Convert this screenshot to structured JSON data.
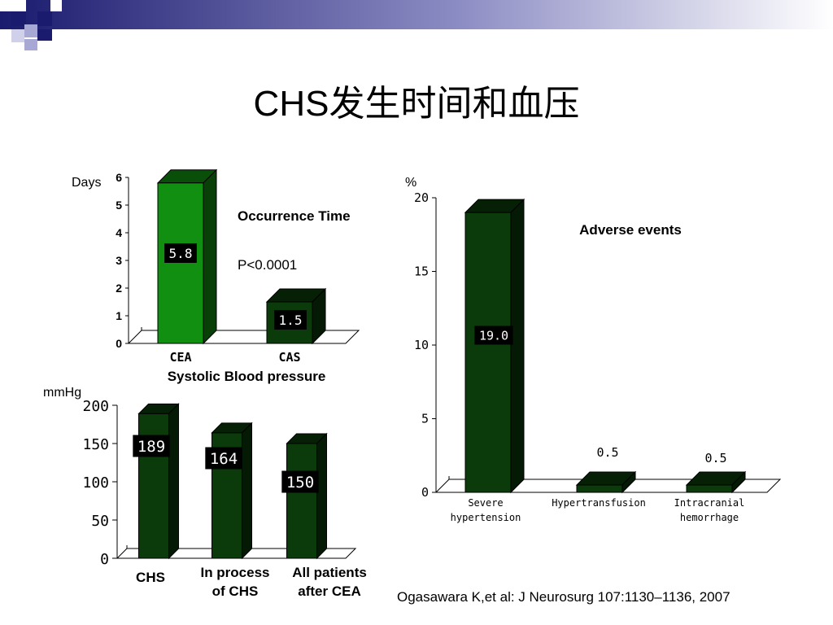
{
  "slide": {
    "title": "CHS发生时间和血压",
    "citation": "Ogasawara K,et al:  J Neurosurg 107:1130–1136, 2007"
  },
  "colors": {
    "bar_bright": "#118f11",
    "bar_dark": "#0b3a0b",
    "header_navy": "#1a1a6e",
    "header_lavender": "#9090c8"
  },
  "chart_data": [
    {
      "id": "occurrence",
      "type": "bar",
      "title": "Occurrence Time",
      "annotation": "P<0.0001",
      "ylabel": "Days",
      "ylim": [
        0,
        6
      ],
      "yticks": [
        0,
        1,
        2,
        3,
        4,
        5,
        6
      ],
      "categories": [
        "CEA",
        "CAS"
      ],
      "values": [
        5.8,
        1.5
      ],
      "data_labels": [
        "5.8",
        "1.5"
      ]
    },
    {
      "id": "blood-pressure",
      "type": "bar",
      "title": "Systolic Blood pressure",
      "ylabel": "mmHg",
      "ylim": [
        0,
        200
      ],
      "yticks": [
        0,
        50,
        100,
        150,
        200
      ],
      "categories": [
        [
          "CHS"
        ],
        [
          "In process",
          "of CHS"
        ],
        [
          "All patients",
          "after CEA"
        ]
      ],
      "values": [
        189,
        164,
        150
      ],
      "data_labels": [
        "189",
        "164",
        "150"
      ]
    },
    {
      "id": "adverse-events",
      "type": "bar",
      "title": "Adverse events",
      "ylabel": "%",
      "ylim": [
        0,
        20
      ],
      "yticks": [
        0,
        5,
        10,
        15,
        20
      ],
      "categories": [
        [
          "Severe",
          "hypertension"
        ],
        [
          "Hypertransfusion"
        ],
        [
          "Intracranial",
          "hemorrhage"
        ]
      ],
      "values": [
        19.0,
        0.5,
        0.5
      ],
      "data_labels": [
        "19.0",
        "0.5",
        "0.5"
      ]
    }
  ]
}
